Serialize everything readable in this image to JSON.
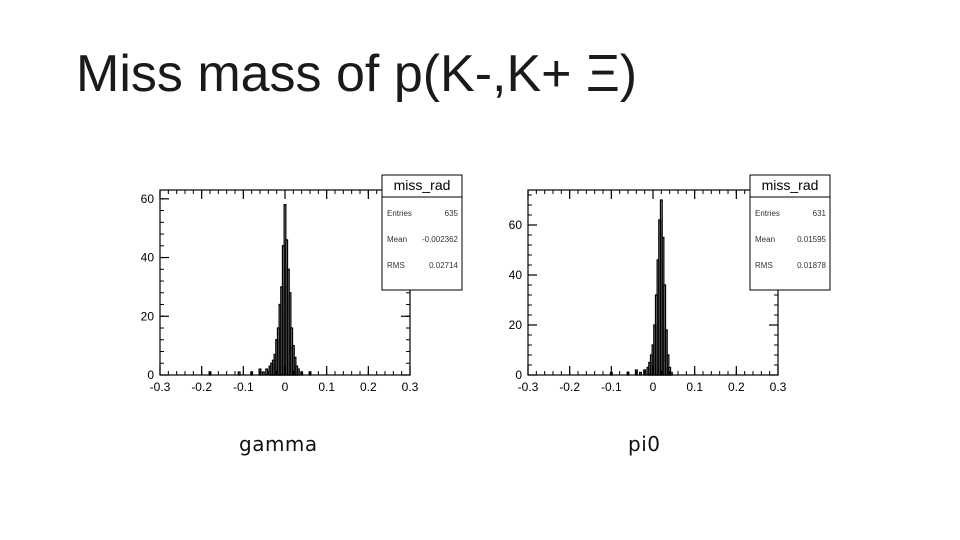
{
  "slide": {
    "title": "Miss mass of p(K-,K+ Ξ)"
  },
  "chart_data": [
    {
      "type": "histogram",
      "caption": "gamma",
      "stats": {
        "title": "miss_rad",
        "rows": [
          {
            "label": "Entries",
            "value": "635"
          },
          {
            "label": "Mean",
            "value": "-0.002362"
          },
          {
            "label": "RMS",
            "value": "0.02714"
          }
        ]
      },
      "xlim": [
        -0.3,
        0.3
      ],
      "ylim": [
        0,
        63
      ],
      "xticks": [
        -0.3,
        -0.2,
        -0.1,
        0,
        0.1,
        0.2,
        0.3
      ],
      "xtick_labels": [
        "-0.3",
        "-0.2",
        "-0.1",
        "0",
        "0.1",
        "0.2",
        "0.3"
      ],
      "yticks": [
        0,
        20,
        40,
        60
      ],
      "ytick_labels": [
        "0",
        "20",
        "40",
        "60"
      ],
      "bin_width": 0.004,
      "bins": [
        {
          "x": -0.18,
          "y": 1
        },
        {
          "x": -0.11,
          "y": 1
        },
        {
          "x": -0.08,
          "y": 1
        },
        {
          "x": -0.06,
          "y": 2
        },
        {
          "x": -0.052,
          "y": 1
        },
        {
          "x": -0.044,
          "y": 2
        },
        {
          "x": -0.036,
          "y": 3
        },
        {
          "x": -0.032,
          "y": 4
        },
        {
          "x": -0.028,
          "y": 5
        },
        {
          "x": -0.024,
          "y": 7
        },
        {
          "x": -0.02,
          "y": 12
        },
        {
          "x": -0.016,
          "y": 16
        },
        {
          "x": -0.012,
          "y": 24
        },
        {
          "x": -0.008,
          "y": 30
        },
        {
          "x": -0.004,
          "y": 44
        },
        {
          "x": 0.0,
          "y": 58
        },
        {
          "x": 0.004,
          "y": 46
        },
        {
          "x": 0.008,
          "y": 36
        },
        {
          "x": 0.012,
          "y": 28
        },
        {
          "x": 0.016,
          "y": 16
        },
        {
          "x": 0.02,
          "y": 10
        },
        {
          "x": 0.024,
          "y": 6
        },
        {
          "x": 0.028,
          "y": 3
        },
        {
          "x": 0.032,
          "y": 2
        },
        {
          "x": 0.04,
          "y": 1
        },
        {
          "x": 0.06,
          "y": 1
        }
      ]
    },
    {
      "type": "histogram",
      "caption": "pi0",
      "stats": {
        "title": "miss_rad",
        "rows": [
          {
            "label": "Entries",
            "value": "631"
          },
          {
            "label": "Mean",
            "value": "0.01595"
          },
          {
            "label": "RMS",
            "value": "0.01878"
          }
        ]
      },
      "xlim": [
        -0.3,
        0.3
      ],
      "ylim": [
        0,
        74
      ],
      "xticks": [
        -0.3,
        -0.2,
        -0.1,
        0,
        0.1,
        0.2,
        0.3
      ],
      "xtick_labels": [
        "-0.3",
        "-0.2",
        "-0.1",
        "0",
        "0.1",
        "0.2",
        "0.3"
      ],
      "yticks": [
        0,
        20,
        40,
        60
      ],
      "ytick_labels": [
        "0",
        "20",
        "40",
        "60"
      ],
      "bin_width": 0.004,
      "bins": [
        {
          "x": -0.1,
          "y": 1
        },
        {
          "x": -0.06,
          "y": 1
        },
        {
          "x": -0.04,
          "y": 2
        },
        {
          "x": -0.03,
          "y": 1
        },
        {
          "x": -0.02,
          "y": 2
        },
        {
          "x": -0.012,
          "y": 3
        },
        {
          "x": -0.008,
          "y": 5
        },
        {
          "x": -0.004,
          "y": 8
        },
        {
          "x": 0.0,
          "y": 12
        },
        {
          "x": 0.004,
          "y": 20
        },
        {
          "x": 0.008,
          "y": 32
        },
        {
          "x": 0.012,
          "y": 46
        },
        {
          "x": 0.016,
          "y": 62
        },
        {
          "x": 0.02,
          "y": 70
        },
        {
          "x": 0.024,
          "y": 55
        },
        {
          "x": 0.028,
          "y": 36
        },
        {
          "x": 0.032,
          "y": 18
        },
        {
          "x": 0.036,
          "y": 8
        },
        {
          "x": 0.04,
          "y": 3
        },
        {
          "x": 0.044,
          "y": 1
        }
      ]
    }
  ]
}
